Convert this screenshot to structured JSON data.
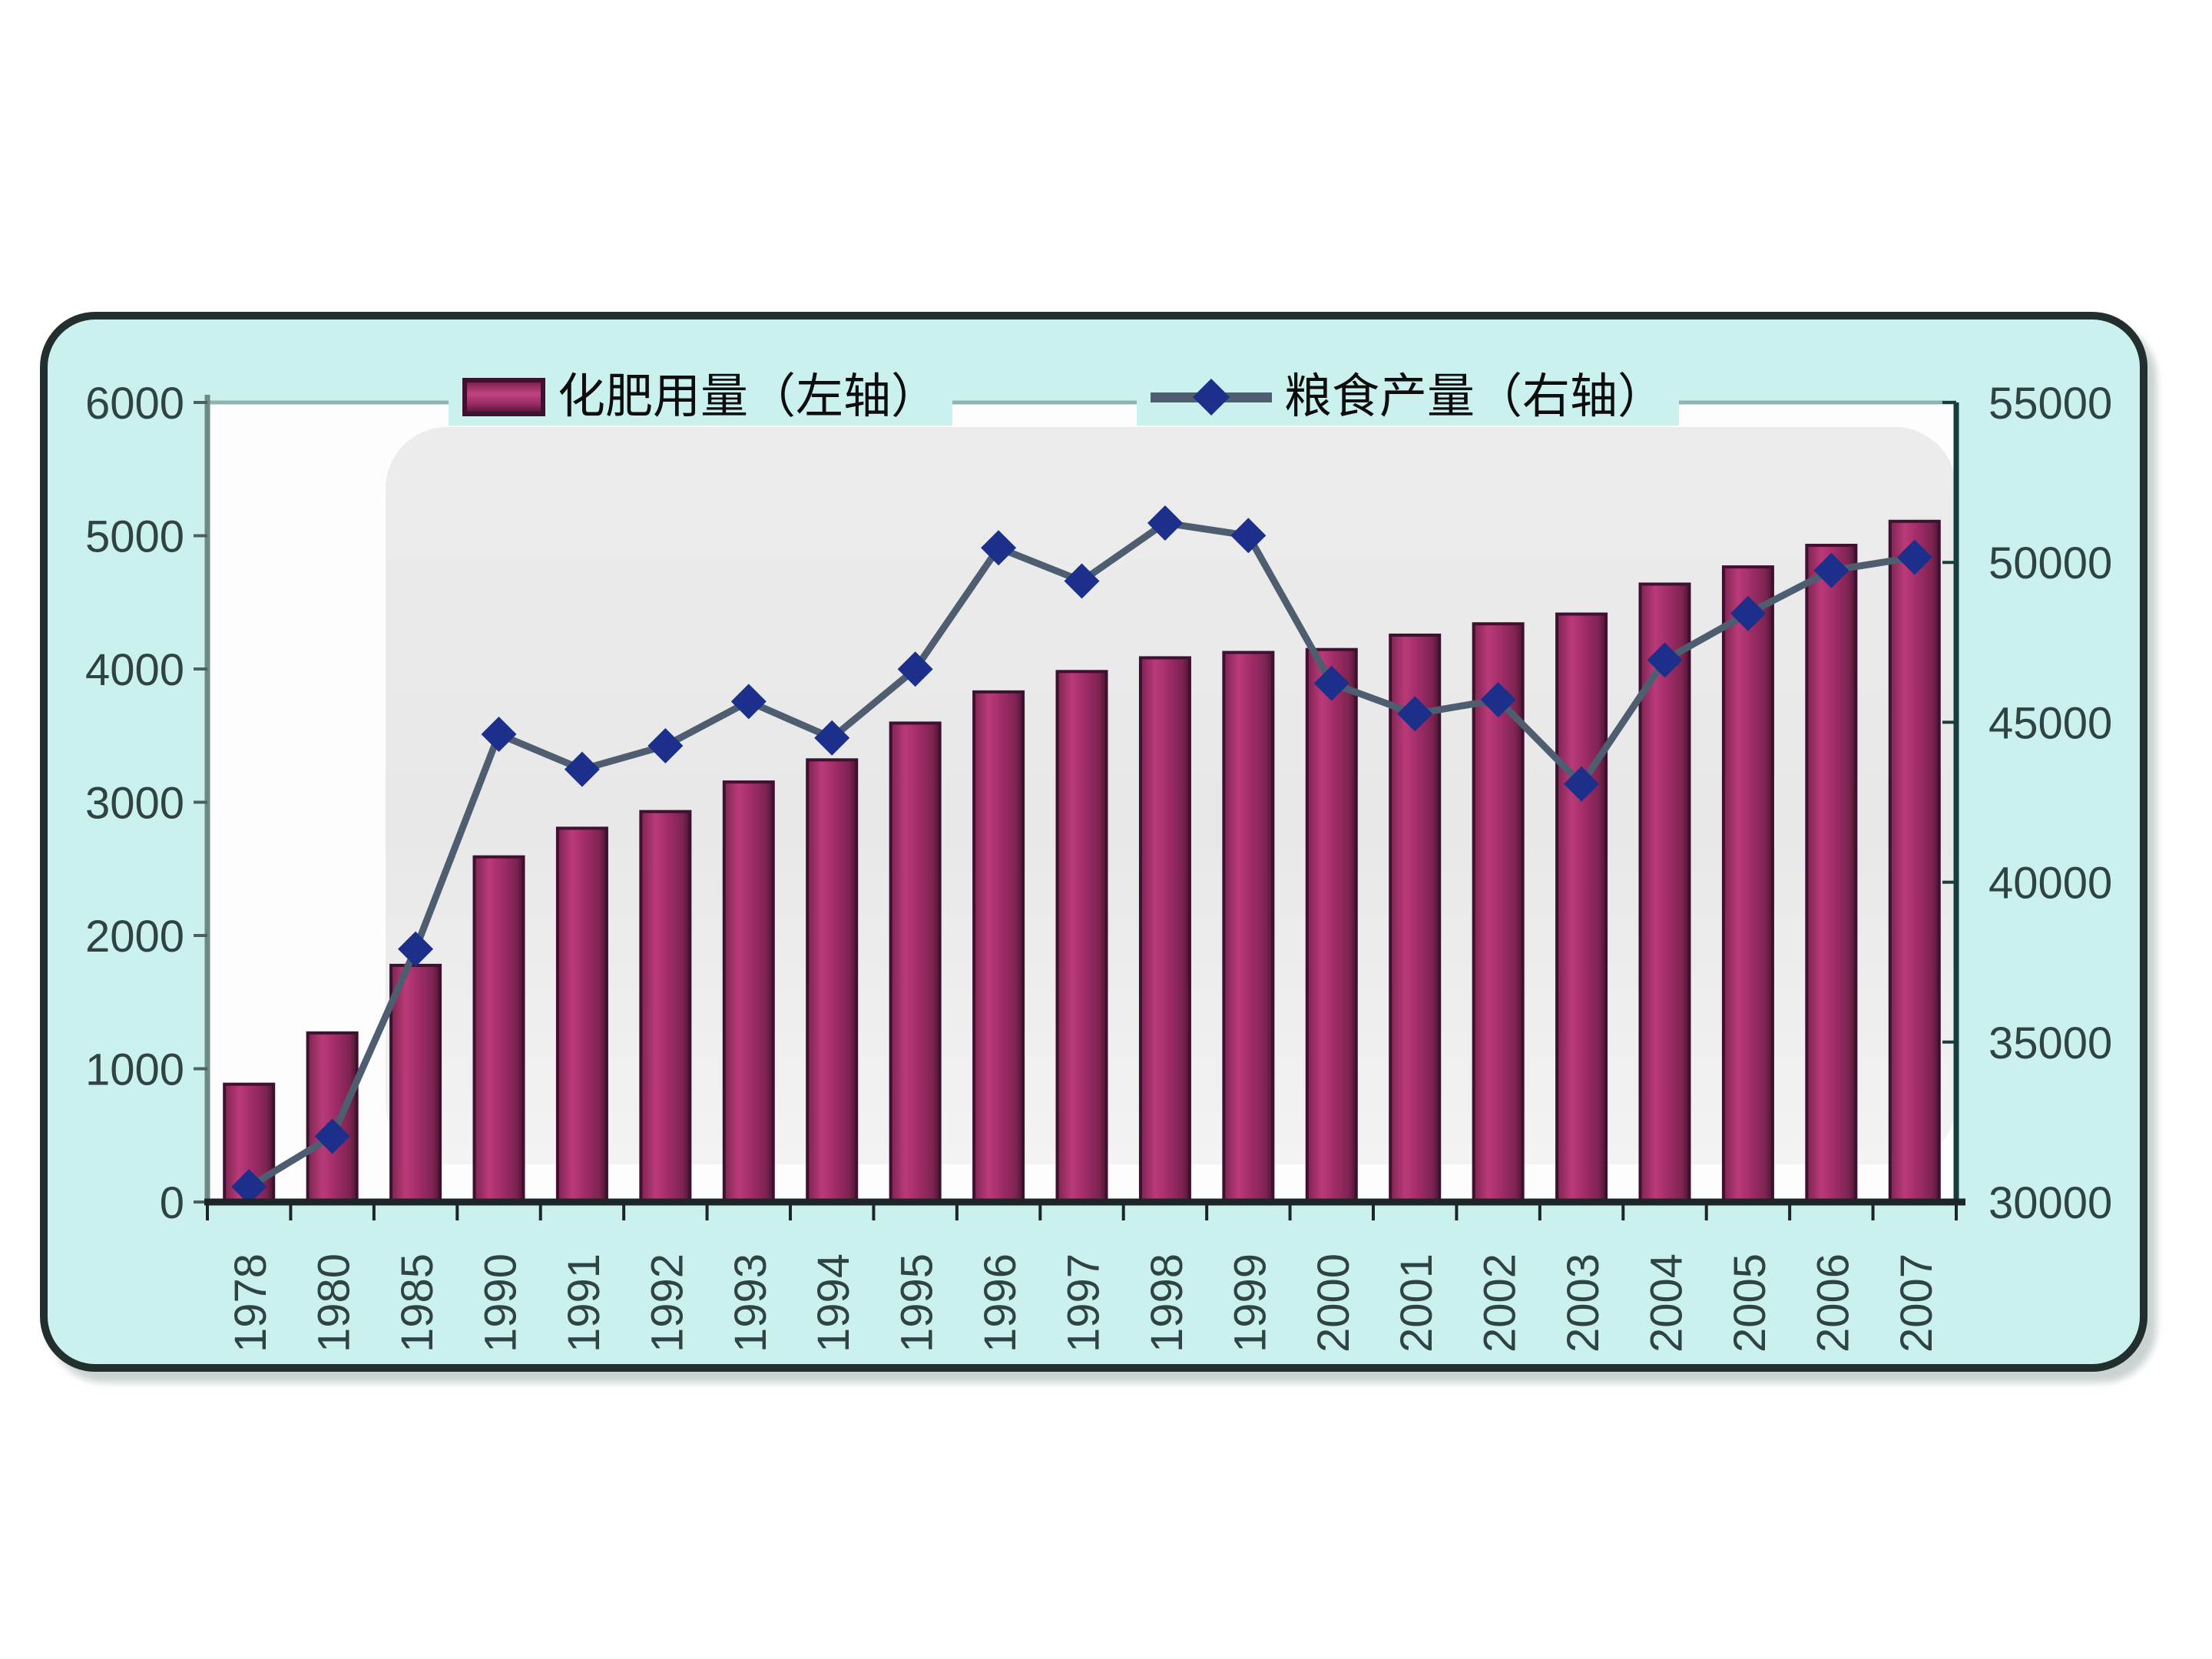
{
  "chart": {
    "colors": {
      "panel_background": "#cbf1ef",
      "panel_border": "#232f2f",
      "plot_background": "#fdfdfd",
      "plot_band": "#ebebeb",
      "bar_fill": "#a32d6a",
      "bar_border": "#401030",
      "line_color": "#4f5d70",
      "marker_color": "#1c2f8a",
      "left_axis_line": "#6e8888",
      "right_axis_line": "#173d3d",
      "bottom_axis_line": "#1d2626",
      "top_border_line": "#8fb3b1",
      "axis_text": "#2f4344",
      "legend_text": "#0d0d0d"
    }
  },
  "chart_data": {
    "type": "combo-bar-line-dual-axis",
    "title": "",
    "categories": [
      "1978",
      "1980",
      "1985",
      "1990",
      "1991",
      "1992",
      "1993",
      "1994",
      "1995",
      "1996",
      "1997",
      "1998",
      "1999",
      "2000",
      "2001",
      "2002",
      "2003",
      "2004",
      "2005",
      "2006",
      "2007"
    ],
    "series": [
      {
        "name": "化肥用量（左轴）",
        "type": "bar",
        "axis": "left",
        "values": [
          884,
          1269,
          1776,
          2590,
          2805,
          2930,
          3152,
          3318,
          3594,
          3828,
          3981,
          4084,
          4124,
          4146,
          4254,
          4339,
          4412,
          4637,
          4766,
          4928,
          5108
        ]
      },
      {
        "name": "粮食产量（右轴）",
        "type": "line",
        "axis": "right",
        "values": [
          30477,
          32056,
          37911,
          44624,
          43529,
          44266,
          45649,
          44510,
          46662,
          50454,
          49417,
          51230,
          50839,
          46218,
          45264,
          45706,
          43070,
          46947,
          48402,
          49748,
          50160
        ]
      }
    ],
    "left_axis": {
      "min": 0,
      "max": 6000,
      "step": 1000,
      "tick_labels": [
        "6000",
        "5000",
        "4000",
        "3000",
        "2000",
        "1000",
        "0"
      ]
    },
    "right_axis": {
      "min": 30000,
      "max": 55000,
      "step": 5000,
      "tick_labels": [
        "55000",
        "50000",
        "45000",
        "40000",
        "35000",
        "30000"
      ]
    },
    "grid": false,
    "legend_position": "top"
  }
}
